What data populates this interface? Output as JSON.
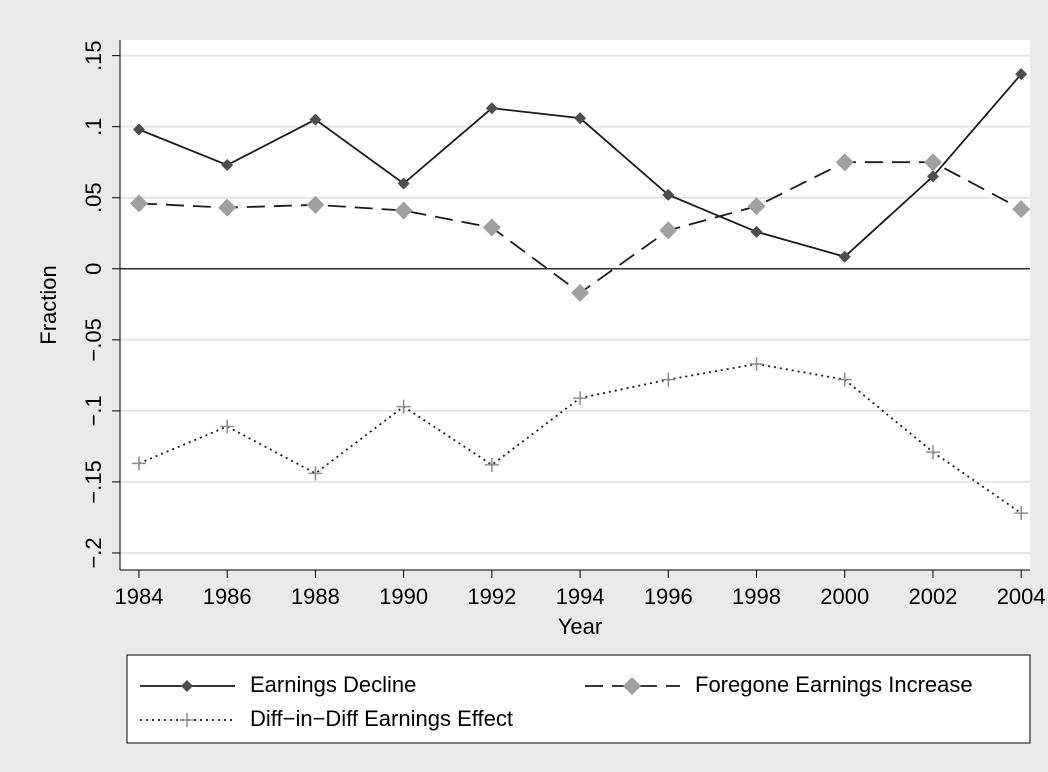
{
  "chart_data": {
    "type": "line",
    "y_label": "Fraction",
    "x_label": "Year",
    "x": [
      1984,
      1986,
      1988,
      1990,
      1992,
      1994,
      1996,
      1998,
      2000,
      2002,
      2004
    ],
    "series": [
      {
        "name": "Earnings Decline",
        "color": "#1a1a1a",
        "marker": "diamond",
        "marker_color": "#4d4d4d",
        "dash": "none",
        "values": [
          0.098,
          0.073,
          0.105,
          0.06,
          0.113,
          0.106,
          0.052,
          0.026,
          0.0085,
          0.065,
          0.137
        ]
      },
      {
        "name": "Foregone Earnings Increase",
        "color": "#1a1a1a",
        "marker": "diamond-large",
        "marker_color": "#a0a0a0",
        "dash": "18 9",
        "values": [
          0.046,
          0.043,
          0.045,
          0.041,
          0.029,
          -0.017,
          0.027,
          0.044,
          0.075,
          0.075,
          0.042
        ]
      },
      {
        "name": "Diff−in−Diff Earnings Effect",
        "color": "#1a1a1a",
        "marker": "plus",
        "marker_color": "#8c8c8c",
        "dash": "2 4",
        "values": [
          -0.137,
          -0.111,
          -0.144,
          -0.097,
          -0.138,
          -0.091,
          -0.078,
          -0.067,
          -0.078,
          -0.129,
          -0.172
        ]
      }
    ],
    "xlim": [
      1983.57,
      2004.2
    ],
    "ylim": [
      -0.212,
      0.161
    ],
    "xticks": [
      1984,
      1986,
      1988,
      1990,
      1992,
      1994,
      1996,
      1998,
      2000,
      2002,
      2004
    ],
    "yticks": [
      {
        "value": -0.2,
        "label": "−.2"
      },
      {
        "value": -0.15,
        "label": "−.15"
      },
      {
        "value": -0.1,
        "label": "−.1"
      },
      {
        "value": -0.05,
        "label": "−.05"
      },
      0,
      {
        "value": 0.05,
        "label": ".05"
      },
      {
        "value": 0.1,
        "label": ".1"
      },
      {
        "value": 0.15,
        "label": ".15"
      }
    ],
    "grid": true,
    "yline": 0,
    "legend": "bottom"
  }
}
